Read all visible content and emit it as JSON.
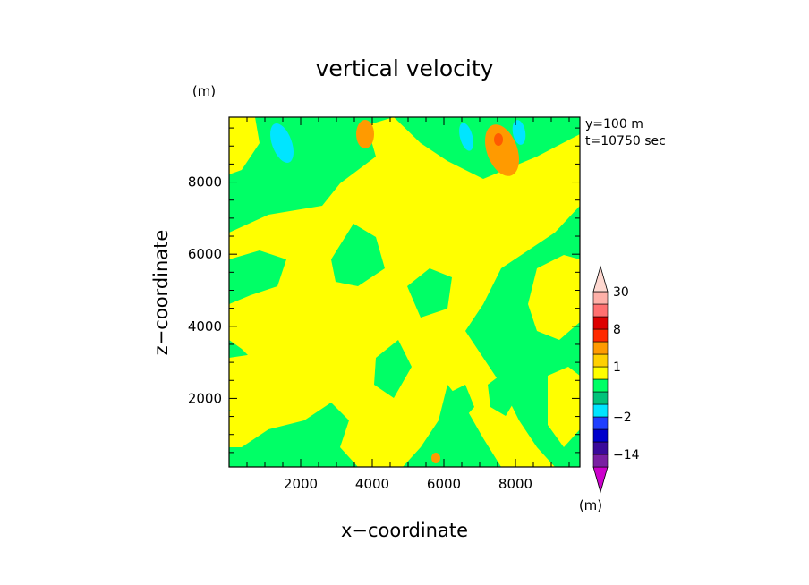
{
  "chart_data": {
    "type": "heatmap",
    "title": "vertical velocity",
    "xlabel": "x−coordinate",
    "ylabel": "z−coordinate",
    "x_unit": "(m)",
    "y_unit": "(m)",
    "colorbar_unit": "(m)",
    "annotations": [
      "y=100  m",
      "t=10750 sec"
    ],
    "xlim": [
      0,
      9800
    ],
    "ylim": [
      100,
      9800
    ],
    "x_ticks": [
      2000,
      4000,
      6000,
      8000
    ],
    "y_ticks": [
      2000,
      4000,
      6000,
      8000
    ],
    "x_tick_labels": [
      "2000",
      "4000",
      "6000",
      "8000"
    ],
    "y_tick_labels": [
      "2000",
      "4000",
      "6000",
      "8000"
    ],
    "colorbar": {
      "levels": [
        -20,
        -14,
        -8,
        -4,
        -2,
        -1,
        -0.5,
        0.5,
        1,
        2,
        4,
        8,
        14,
        20,
        30
      ],
      "colors": [
        "#cc00cc",
        "#7a1fa2",
        "#3a0a9a",
        "#0000cc",
        "#1f3fff",
        "#00e5ff",
        "#00c37a",
        "#00ff66",
        "#ffff00",
        "#ffd000",
        "#ff9a00",
        "#ff2a00",
        "#dd0000",
        "#ff7070",
        "#ffb0a8",
        "#ffd8d0"
      ],
      "labeled": [
        {
          "value": 30,
          "text": "30"
        },
        {
          "value": 8,
          "text": "8"
        },
        {
          "value": 1,
          "text": "1"
        },
        {
          "value": -2,
          "text": "−2"
        },
        {
          "value": -14,
          "text": "−14"
        }
      ]
    }
  }
}
